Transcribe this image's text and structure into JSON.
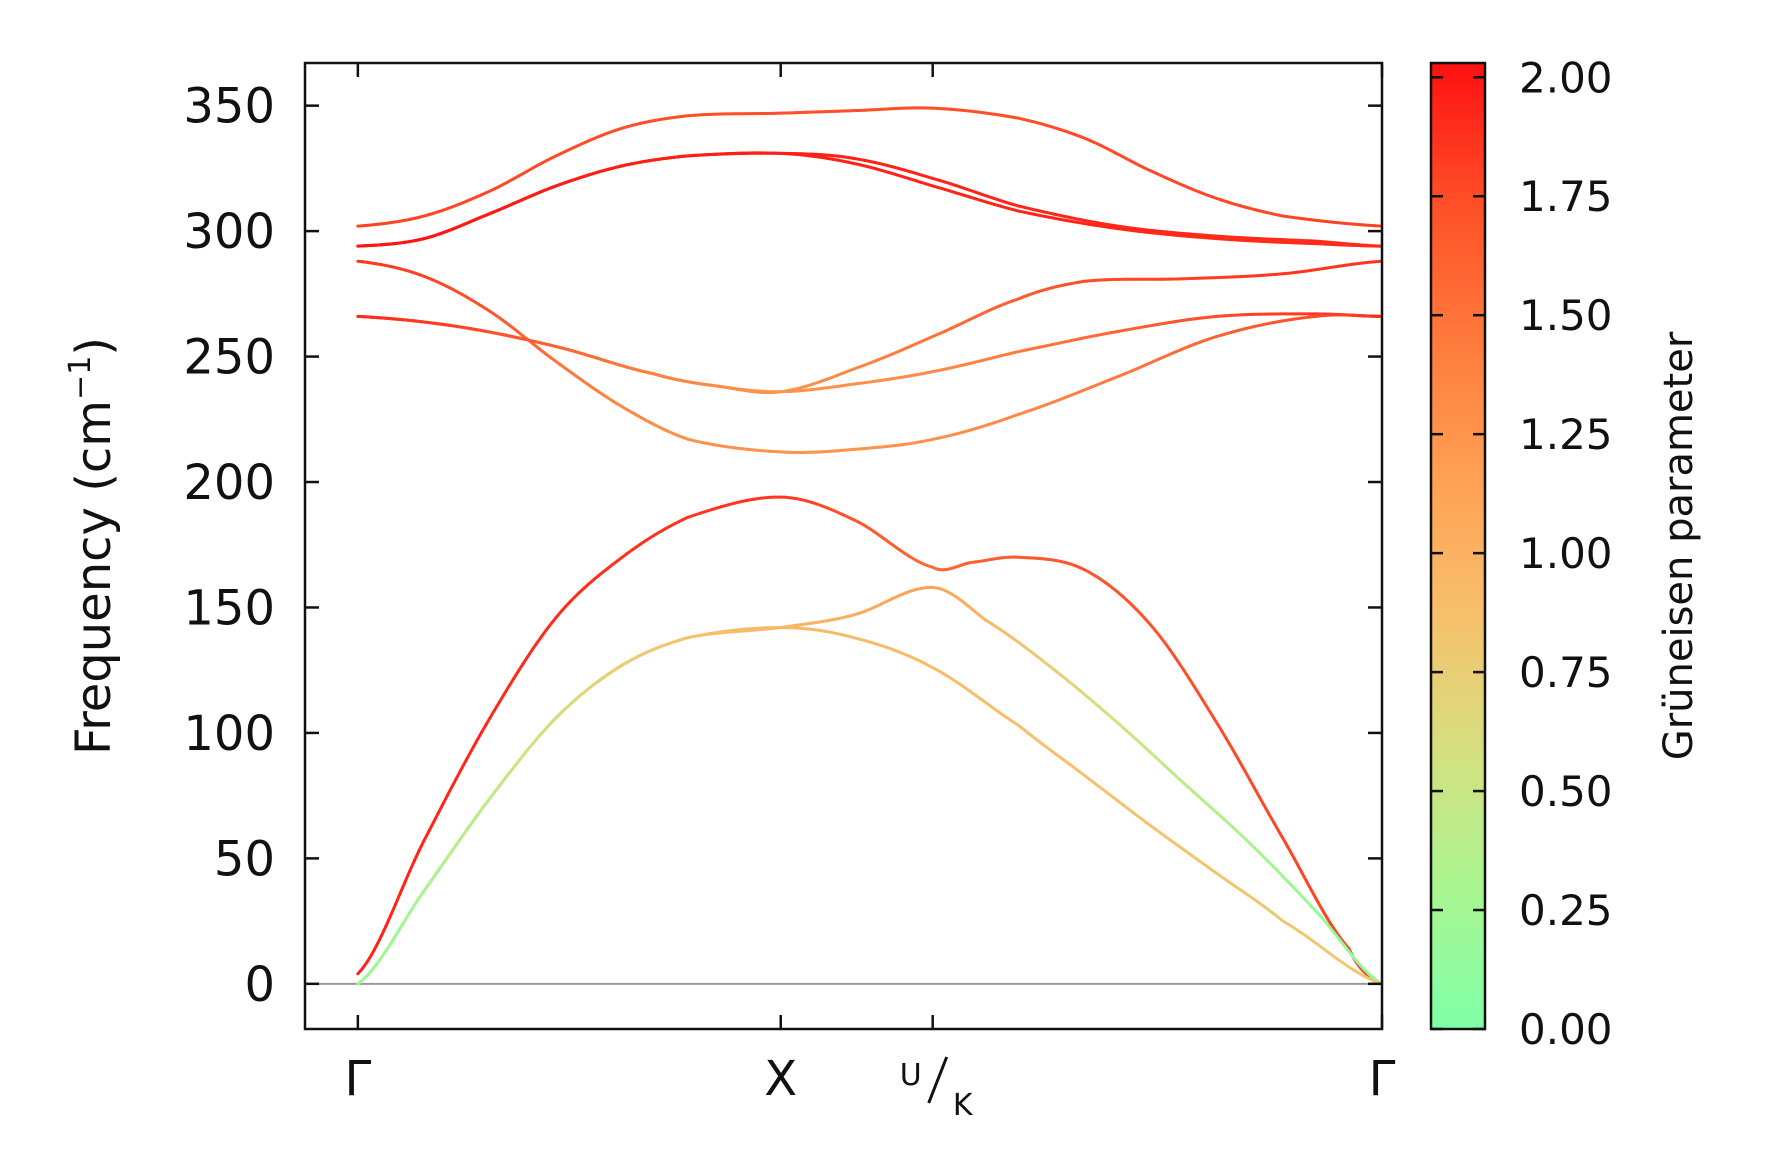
{
  "chart_data": {
    "type": "line",
    "ylabel_main": "Frequency (cm",
    "ylabel_sup": "−1",
    "ylabel_close": ")",
    "ylim": [
      -18,
      367
    ],
    "yticks": [
      0,
      50,
      100,
      150,
      200,
      250,
      300,
      350
    ],
    "ytick_labels": [
      "0",
      "50",
      "100",
      "150",
      "200",
      "250",
      "300",
      "350"
    ],
    "xlim": [
      -0.16,
      3.1
    ],
    "kpoints": [
      {
        "position": 0.0,
        "label": "Γ"
      },
      {
        "position": 1.28,
        "label": "X"
      },
      {
        "position": 1.74,
        "label_sup": "U",
        "label_sub": "K"
      },
      {
        "position": 3.1,
        "label": "Γ"
      }
    ],
    "zero_line": 0,
    "colorbar": {
      "label": "Grüneisen parameter",
      "range": [
        0.0,
        2.03
      ],
      "ticks": [
        0.0,
        0.25,
        0.5,
        0.75,
        1.0,
        1.25,
        1.5,
        1.75,
        2.0
      ],
      "tick_labels": [
        "0.00",
        "0.25",
        "0.50",
        "0.75",
        "1.00",
        "1.25",
        "1.50",
        "1.75",
        "2.00"
      ],
      "colormap": [
        "#80ffa8",
        "#a8f590",
        "#d4e080",
        "#f7c06c",
        "#ffa054",
        "#ff7a3c",
        "#ff4e28",
        "#ff1010"
      ]
    },
    "branches": [
      {
        "points": [
          [
            0.0,
            4,
            1.95
          ],
          [
            0.2,
            57,
            1.93
          ],
          [
            0.4,
            106,
            1.92
          ],
          [
            0.6,
            146,
            1.9
          ],
          [
            0.8,
            170,
            1.88
          ],
          [
            1.0,
            186,
            1.86
          ],
          [
            1.28,
            194,
            1.85
          ],
          [
            1.5,
            185,
            1.7
          ],
          [
            1.74,
            166,
            1.55
          ],
          [
            1.86,
            168,
            1.62
          ],
          [
            2.0,
            170,
            1.65
          ],
          [
            2.2,
            165,
            1.7
          ],
          [
            2.4,
            143,
            1.72
          ],
          [
            2.6,
            104,
            1.75
          ],
          [
            2.8,
            58,
            1.78
          ],
          [
            3.0,
            14,
            1.8
          ],
          [
            3.1,
            0,
            1.8
          ]
        ]
      },
      {
        "points": [
          [
            0.0,
            0,
            0.1
          ],
          [
            0.2,
            37,
            0.25
          ],
          [
            0.4,
            74,
            0.45
          ],
          [
            0.6,
            106,
            0.62
          ],
          [
            0.8,
            127,
            0.75
          ],
          [
            1.0,
            138,
            0.85
          ],
          [
            1.28,
            142,
            0.95
          ],
          [
            1.5,
            147,
            1.05
          ],
          [
            1.74,
            158,
            1.15
          ],
          [
            1.9,
            145,
            0.95
          ],
          [
            2.1,
            126,
            0.75
          ],
          [
            2.3,
            104,
            0.55
          ],
          [
            2.5,
            80,
            0.4
          ],
          [
            2.7,
            56,
            0.3
          ],
          [
            2.9,
            29,
            0.2
          ],
          [
            3.1,
            0,
            0.1
          ]
        ]
      },
      {
        "points": [
          [
            0.0,
            0,
            0.2
          ],
          [
            0.2,
            37,
            0.3
          ],
          [
            0.4,
            74,
            0.45
          ],
          [
            0.6,
            106,
            0.62
          ],
          [
            0.8,
            127,
            0.75
          ],
          [
            1.0,
            138,
            0.85
          ],
          [
            1.28,
            142,
            0.95
          ],
          [
            1.5,
            138,
            0.92
          ],
          [
            1.74,
            126,
            0.9
          ],
          [
            2.0,
            103,
            0.88
          ],
          [
            2.2,
            83,
            0.86
          ],
          [
            2.4,
            63,
            0.84
          ],
          [
            2.6,
            44,
            0.82
          ],
          [
            2.8,
            25,
            0.8
          ],
          [
            3.1,
            0,
            0.8
          ]
        ]
      },
      {
        "points": [
          [
            0.0,
            266,
            1.9
          ],
          [
            0.3,
            262,
            1.8
          ],
          [
            0.6,
            254,
            1.6
          ],
          [
            0.9,
            243,
            1.4
          ],
          [
            1.1,
            238,
            1.3
          ],
          [
            1.28,
            236,
            1.25
          ],
          [
            1.5,
            239,
            1.28
          ],
          [
            1.74,
            244,
            1.32
          ],
          [
            2.0,
            252,
            1.45
          ],
          [
            2.3,
            260,
            1.6
          ],
          [
            2.6,
            266,
            1.75
          ],
          [
            2.9,
            267,
            1.85
          ],
          [
            3.1,
            266,
            1.9
          ]
        ]
      },
      {
        "points": [
          [
            0.0,
            288,
            1.85
          ],
          [
            0.2,
            282,
            1.8
          ],
          [
            0.4,
            268,
            1.7
          ],
          [
            0.6,
            248,
            1.5
          ],
          [
            0.8,
            230,
            1.35
          ],
          [
            1.0,
            217,
            1.28
          ],
          [
            1.28,
            212,
            1.25
          ],
          [
            1.5,
            213,
            1.26
          ],
          [
            1.74,
            217,
            1.28
          ],
          [
            2.0,
            227,
            1.33
          ],
          [
            2.3,
            242,
            1.45
          ],
          [
            2.6,
            258,
            1.6
          ],
          [
            2.9,
            266,
            1.75
          ],
          [
            3.1,
            266,
            1.9
          ]
        ]
      },
      {
        "points": [
          [
            0.0,
            266,
            1.9
          ],
          [
            0.3,
            262,
            1.8
          ],
          [
            0.6,
            254,
            1.6
          ],
          [
            0.9,
            243,
            1.4
          ],
          [
            1.1,
            238,
            1.3
          ],
          [
            1.28,
            236,
            1.25
          ],
          [
            1.5,
            245,
            1.35
          ],
          [
            1.74,
            258,
            1.5
          ],
          [
            2.0,
            273,
            1.65
          ],
          [
            2.2,
            280,
            1.75
          ],
          [
            2.5,
            281,
            1.8
          ],
          [
            2.8,
            283,
            1.85
          ],
          [
            3.1,
            288,
            1.85
          ]
        ]
      },
      {
        "points": [
          [
            0.0,
            294,
            2.0
          ],
          [
            0.2,
            297,
            2.0
          ],
          [
            0.4,
            307,
            1.98
          ],
          [
            0.6,
            318,
            1.97
          ],
          [
            0.8,
            326,
            1.96
          ],
          [
            1.0,
            330,
            1.96
          ],
          [
            1.28,
            331,
            1.96
          ],
          [
            1.5,
            329,
            1.95
          ],
          [
            1.74,
            321,
            1.94
          ],
          [
            2.0,
            310,
            1.93
          ],
          [
            2.3,
            302,
            1.92
          ],
          [
            2.6,
            298,
            1.9
          ],
          [
            2.9,
            296,
            1.9
          ],
          [
            3.1,
            294,
            1.9
          ]
        ]
      },
      {
        "points": [
          [
            0.0,
            294,
            2.0
          ],
          [
            0.2,
            297,
            2.0
          ],
          [
            0.4,
            307,
            1.98
          ],
          [
            0.6,
            318,
            1.97
          ],
          [
            0.8,
            326,
            1.96
          ],
          [
            1.0,
            330,
            1.96
          ],
          [
            1.28,
            331,
            1.96
          ],
          [
            1.5,
            327,
            1.95
          ],
          [
            1.74,
            318,
            1.94
          ],
          [
            2.0,
            308,
            1.93
          ],
          [
            2.3,
            301,
            1.92
          ],
          [
            2.6,
            297,
            1.9
          ],
          [
            2.9,
            295,
            1.9
          ],
          [
            3.1,
            294,
            1.9
          ]
        ]
      },
      {
        "points": [
          [
            0.0,
            302,
            1.8
          ],
          [
            0.2,
            306,
            1.78
          ],
          [
            0.4,
            316,
            1.77
          ],
          [
            0.6,
            330,
            1.75
          ],
          [
            0.8,
            341,
            1.74
          ],
          [
            1.0,
            346,
            1.74
          ],
          [
            1.28,
            347,
            1.74
          ],
          [
            1.5,
            348,
            1.74
          ],
          [
            1.74,
            349,
            1.74
          ],
          [
            2.0,
            345,
            1.74
          ],
          [
            2.2,
            337,
            1.75
          ],
          [
            2.4,
            324,
            1.76
          ],
          [
            2.6,
            313,
            1.77
          ],
          [
            2.8,
            306,
            1.78
          ],
          [
            3.1,
            302,
            1.8
          ]
        ]
      }
    ]
  }
}
